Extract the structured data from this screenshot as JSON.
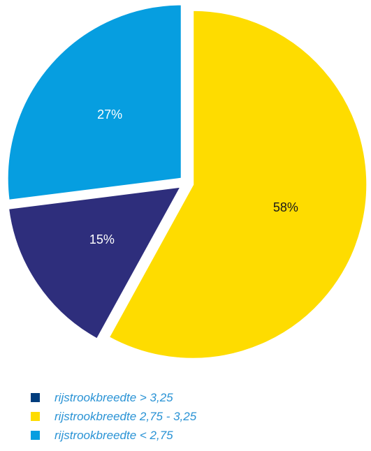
{
  "chart_data": {
    "type": "pie",
    "categories": [
      "rijstrookbreedte > 3,25",
      "rijstrookbreedte 2,75 - 3,25",
      "rijstrookbreedte < 2,75"
    ],
    "values": [
      15,
      58,
      27
    ],
    "labels": [
      "15%",
      "58%",
      "27%"
    ],
    "colors": [
      "#2e2e7c",
      "#fedc00",
      "#069ee0"
    ],
    "legend_position": "bottom-left"
  },
  "legend": {
    "items": [
      {
        "label": "rijstrookbreedte > 3,25",
        "color": "#003d7d"
      },
      {
        "label": "rijstrookbreedte 2,75 - 3,25",
        "color": "#fedc00"
      },
      {
        "label": "rijstrookbreedte < 2,75",
        "color": "#069ee0"
      }
    ]
  }
}
